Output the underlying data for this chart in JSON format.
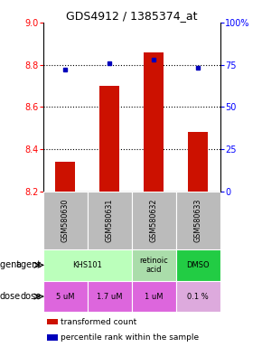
{
  "title": "GDS4912 / 1385374_at",
  "samples": [
    "GSM580630",
    "GSM580631",
    "GSM580632",
    "GSM580633"
  ],
  "bar_values": [
    8.34,
    8.7,
    8.86,
    8.48
  ],
  "dot_values": [
    72,
    76,
    78,
    73
  ],
  "ylim_left": [
    8.2,
    9.0
  ],
  "ylim_right": [
    0,
    100
  ],
  "yticks_left": [
    8.2,
    8.4,
    8.6,
    8.8,
    9.0
  ],
  "yticks_right": [
    0,
    25,
    50,
    75,
    100
  ],
  "ytick_labels_right": [
    "0",
    "25",
    "50",
    "75",
    "100%"
  ],
  "bar_color": "#cc1100",
  "dot_color": "#0000bb",
  "bar_bottom": 8.2,
  "grid_values": [
    8.4,
    8.6,
    8.8
  ],
  "agent_spans": [
    [
      0,
      2,
      "KHS101",
      "#bbffbb"
    ],
    [
      2,
      3,
      "retinoic\nacid",
      "#aaddaa"
    ],
    [
      3,
      4,
      "DMSO",
      "#22cc44"
    ]
  ],
  "doses": [
    "5 uM",
    "1.7 uM",
    "1 uM",
    "0.1 %"
  ],
  "dose_color": "#dd66dd",
  "dose_color2": "#cc55cc",
  "sample_bg": "#bbbbbb",
  "legend_bar_color": "#cc1100",
  "legend_dot_color": "#0000bb",
  "bg_color": "#ffffff"
}
